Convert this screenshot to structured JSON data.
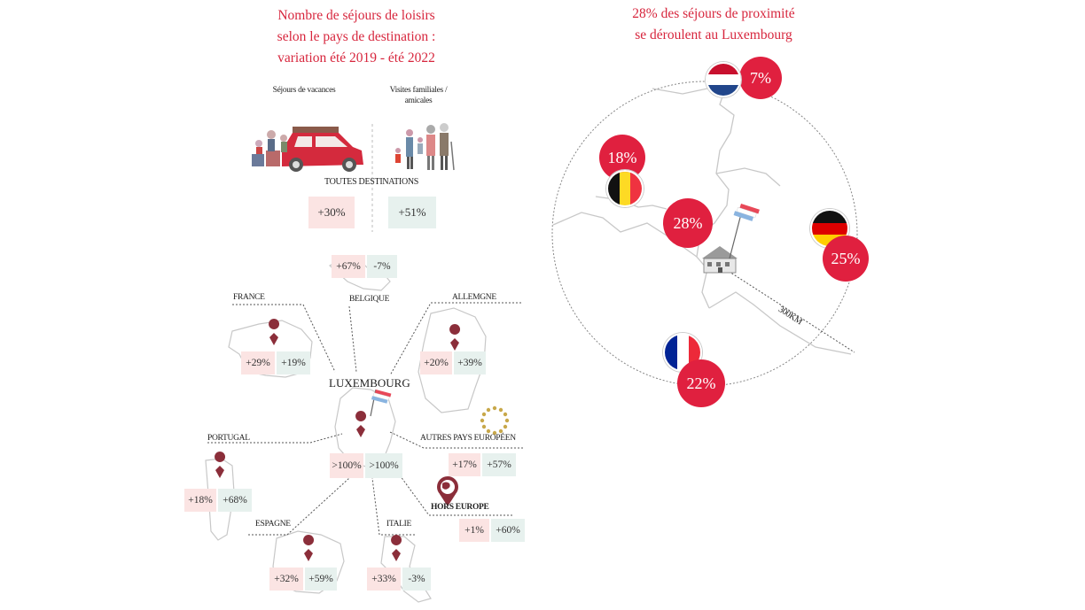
{
  "left": {
    "title_lines": [
      "Nombre de séjours de loisirs",
      "selon le pays de destination :",
      "variation été 2019 - été 2022"
    ],
    "category_vacances": "Séjours de vacances",
    "category_visites": "Visites familiales / amicales",
    "all_destinations": {
      "label": "TOUTES DESTINATIONS",
      "vacances": "+30%",
      "visites": "+51%"
    },
    "luxembourg": {
      "label": "LUXEMBOURG",
      "vacances": ">100%",
      "visites": ">100%"
    },
    "belgique": {
      "label": "BELGIQUE",
      "vacances": "+67%",
      "visites": "-7%"
    },
    "france": {
      "label": "FRANCE",
      "vacances": "+29%",
      "visites": "+19%"
    },
    "allemagne": {
      "label": "ALLEMGNE",
      "vacances": "+20%",
      "visites": "+39%"
    },
    "portugal": {
      "label": "PORTUGAL",
      "vacances": "+18%",
      "visites": "+68%"
    },
    "autres_europe": {
      "label": "AUTRES PAYS EUROPÉEN",
      "vacances": "+17%",
      "visites": "+57%"
    },
    "hors_europe": {
      "label": "HORS EUROPE",
      "vacances": "+1%",
      "visites": "+60%"
    },
    "espagne": {
      "label": "ESPAGNE",
      "vacances": "+32%",
      "visites": "+59%"
    },
    "italie": {
      "label": "ITALIE",
      "vacances": "+33%",
      "visites": "-3%"
    }
  },
  "right": {
    "title_line1": "28% des séjours de proximité",
    "title_line2": "se déroulent au Luxembourg",
    "distance_label": "300KM",
    "nl": "7%",
    "be": "18%",
    "lu": "28%",
    "de": "25%",
    "fr": "22%"
  },
  "colors": {
    "accent": "#e0203f",
    "vacances_bg": "#fbe4e3",
    "visites_bg": "#e7f1ee",
    "pin": "#8b2e3a"
  }
}
